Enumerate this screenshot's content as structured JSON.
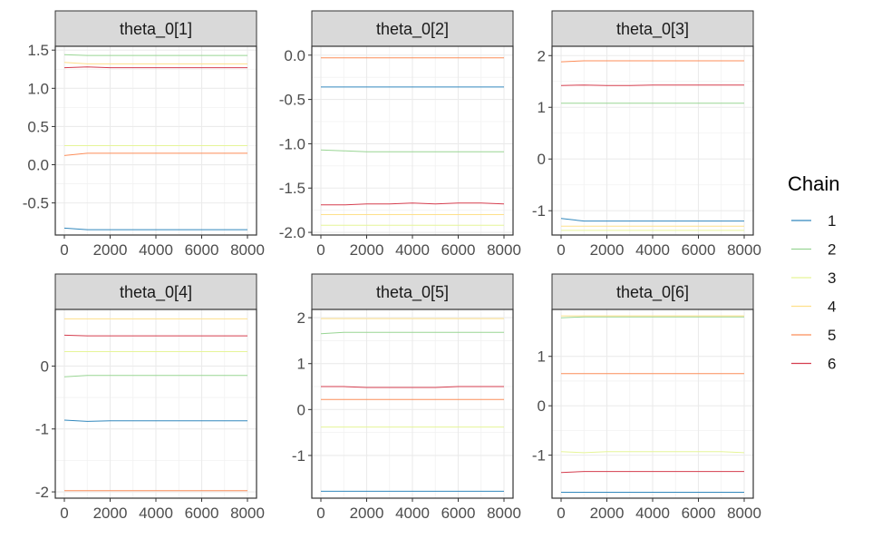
{
  "chart_data": {
    "type": "line",
    "xlim": [
      0,
      8000
    ],
    "xticks": [
      0,
      2000,
      4000,
      6000,
      8000
    ],
    "x": [
      0,
      1000,
      2000,
      3000,
      4000,
      5000,
      6000,
      7000,
      8000
    ],
    "legend": {
      "title": "Chain",
      "position": "right",
      "entries": [
        "1",
        "2",
        "3",
        "4",
        "5",
        "6"
      ]
    },
    "colors": {
      "1": "#3288bd",
      "2": "#99d594",
      "3": "#e6f598",
      "4": "#fee08b",
      "5": "#fc8d59",
      "6": "#d53e4f"
    },
    "panels": [
      {
        "title": "theta_0[1]",
        "ylim": [
          -0.92,
          1.55
        ],
        "yticks": [
          -0.5,
          0.0,
          0.5,
          1.0,
          1.5
        ],
        "yticklabels": [
          "-0.5",
          "0.0",
          "0.5",
          "1.0",
          "1.5"
        ],
        "series": [
          {
            "name": "1",
            "values": [
              -0.83,
              -0.85,
              -0.85,
              -0.85,
              -0.85,
              -0.85,
              -0.85,
              -0.85,
              -0.85
            ]
          },
          {
            "name": "2",
            "values": [
              1.44,
              1.43,
              1.43,
              1.43,
              1.43,
              1.43,
              1.43,
              1.43,
              1.43
            ]
          },
          {
            "name": "3",
            "values": [
              0.25,
              0.25,
              0.25,
              0.25,
              0.25,
              0.25,
              0.25,
              0.25,
              0.25
            ]
          },
          {
            "name": "4",
            "values": [
              1.34,
              1.32,
              1.32,
              1.32,
              1.32,
              1.32,
              1.32,
              1.32,
              1.32
            ]
          },
          {
            "name": "5",
            "values": [
              0.12,
              0.15,
              0.15,
              0.15,
              0.15,
              0.15,
              0.15,
              0.15,
              0.15
            ]
          },
          {
            "name": "6",
            "values": [
              1.27,
              1.28,
              1.27,
              1.27,
              1.27,
              1.27,
              1.27,
              1.27,
              1.27
            ]
          }
        ]
      },
      {
        "title": "theta_0[2]",
        "ylim": [
          -2.03,
          0.1
        ],
        "yticks": [
          -2.0,
          -1.5,
          -1.0,
          -0.5,
          0.0
        ],
        "yticklabels": [
          "-2.0",
          "-1.5",
          "-1.0",
          "-0.5",
          "0.0"
        ],
        "series": [
          {
            "name": "1",
            "values": [
              -0.36,
              -0.36,
              -0.36,
              -0.36,
              -0.36,
              -0.36,
              -0.36,
              -0.36,
              -0.36
            ]
          },
          {
            "name": "2",
            "values": [
              -1.07,
              -1.08,
              -1.09,
              -1.09,
              -1.09,
              -1.09,
              -1.09,
              -1.09,
              -1.09
            ]
          },
          {
            "name": "3",
            "values": [
              -1.92,
              -1.92,
              -1.92,
              -1.92,
              -1.92,
              -1.92,
              -1.92,
              -1.92,
              -1.92
            ]
          },
          {
            "name": "4",
            "values": [
              -1.8,
              -1.8,
              -1.8,
              -1.8,
              -1.8,
              -1.8,
              -1.8,
              -1.8,
              -1.8
            ]
          },
          {
            "name": "5",
            "values": [
              -0.03,
              -0.03,
              -0.03,
              -0.03,
              -0.03,
              -0.03,
              -0.03,
              -0.03,
              -0.03
            ]
          },
          {
            "name": "6",
            "values": [
              -1.69,
              -1.69,
              -1.68,
              -1.68,
              -1.67,
              -1.68,
              -1.67,
              -1.67,
              -1.68
            ]
          }
        ]
      },
      {
        "title": "theta_0[3]",
        "ylim": [
          -1.47,
          2.18
        ],
        "yticks": [
          -1,
          0,
          1,
          2
        ],
        "yticklabels": [
          "-1",
          "0",
          "1",
          "2"
        ],
        "series": [
          {
            "name": "1",
            "values": [
              -1.15,
              -1.2,
              -1.2,
              -1.2,
              -1.2,
              -1.2,
              -1.2,
              -1.2,
              -1.2
            ]
          },
          {
            "name": "2",
            "values": [
              1.08,
              1.08,
              1.08,
              1.08,
              1.08,
              1.08,
              1.08,
              1.08,
              1.08
            ]
          },
          {
            "name": "3",
            "values": [
              -1.38,
              -1.38,
              -1.38,
              -1.38,
              -1.38,
              -1.38,
              -1.38,
              -1.38,
              -1.38
            ]
          },
          {
            "name": "4",
            "values": [
              -1.3,
              -1.3,
              -1.3,
              -1.3,
              -1.3,
              -1.3,
              -1.3,
              -1.3,
              -1.3
            ]
          },
          {
            "name": "5",
            "values": [
              1.88,
              1.9,
              1.9,
              1.9,
              1.9,
              1.9,
              1.9,
              1.9,
              1.9
            ]
          },
          {
            "name": "6",
            "values": [
              1.42,
              1.43,
              1.42,
              1.42,
              1.43,
              1.43,
              1.43,
              1.43,
              1.43
            ]
          }
        ]
      },
      {
        "title": "theta_0[4]",
        "ylim": [
          -2.1,
          0.9
        ],
        "yticks": [
          -2,
          -1,
          0
        ],
        "yticklabels": [
          "-2",
          "-1",
          "0"
        ],
        "series": [
          {
            "name": "1",
            "values": [
              -0.86,
              -0.88,
              -0.87,
              -0.87,
              -0.87,
              -0.87,
              -0.87,
              -0.87,
              -0.87
            ]
          },
          {
            "name": "2",
            "values": [
              -0.17,
              -0.15,
              -0.15,
              -0.15,
              -0.15,
              -0.15,
              -0.15,
              -0.15,
              -0.15
            ]
          },
          {
            "name": "3",
            "values": [
              0.23,
              0.23,
              0.23,
              0.23,
              0.23,
              0.23,
              0.23,
              0.23,
              0.23
            ]
          },
          {
            "name": "4",
            "values": [
              0.75,
              0.75,
              0.75,
              0.75,
              0.75,
              0.75,
              0.75,
              0.75,
              0.75
            ]
          },
          {
            "name": "5",
            "values": [
              -1.98,
              -1.98,
              -1.98,
              -1.98,
              -1.98,
              -1.98,
              -1.98,
              -1.98,
              -1.98
            ]
          },
          {
            "name": "6",
            "values": [
              0.49,
              0.48,
              0.48,
              0.48,
              0.48,
              0.48,
              0.48,
              0.48,
              0.48
            ]
          }
        ]
      },
      {
        "title": "theta_0[5]",
        "ylim": [
          -1.93,
          2.18
        ],
        "yticks": [
          -1,
          0,
          1,
          2
        ],
        "yticklabels": [
          "-1",
          "0",
          "1",
          "2"
        ],
        "series": [
          {
            "name": "1",
            "values": [
              -1.78,
              -1.78,
              -1.78,
              -1.78,
              -1.78,
              -1.78,
              -1.78,
              -1.78,
              -1.78
            ]
          },
          {
            "name": "2",
            "values": [
              1.65,
              1.68,
              1.68,
              1.68,
              1.68,
              1.68,
              1.68,
              1.68,
              1.68
            ]
          },
          {
            "name": "3",
            "values": [
              -0.38,
              -0.38,
              -0.38,
              -0.38,
              -0.38,
              -0.38,
              -0.38,
              -0.38,
              -0.38
            ]
          },
          {
            "name": "4",
            "values": [
              1.98,
              1.98,
              1.98,
              1.98,
              1.98,
              1.98,
              1.98,
              1.98,
              1.98
            ]
          },
          {
            "name": "5",
            "values": [
              0.22,
              0.22,
              0.22,
              0.22,
              0.22,
              0.22,
              0.22,
              0.22,
              0.22
            ]
          },
          {
            "name": "6",
            "values": [
              0.5,
              0.5,
              0.48,
              0.48,
              0.48,
              0.48,
              0.5,
              0.5,
              0.5
            ]
          }
        ]
      },
      {
        "title": "theta_0[6]",
        "ylim": [
          -1.87,
          1.95
        ],
        "yticks": [
          -1,
          0,
          1
        ],
        "yticklabels": [
          "-1",
          "0",
          "1"
        ],
        "series": [
          {
            "name": "1",
            "values": [
              -1.75,
              -1.75,
              -1.75,
              -1.75,
              -1.75,
              -1.75,
              -1.75,
              -1.75,
              -1.75
            ]
          },
          {
            "name": "2",
            "values": [
              1.78,
              1.8,
              1.8,
              1.8,
              1.8,
              1.8,
              1.8,
              1.8,
              1.8
            ]
          },
          {
            "name": "3",
            "values": [
              -0.93,
              -0.95,
              -0.93,
              -0.93,
              -0.93,
              -0.93,
              -0.93,
              -0.93,
              -0.95
            ]
          },
          {
            "name": "4",
            "values": [
              1.82,
              1.82,
              1.82,
              1.82,
              1.82,
              1.82,
              1.82,
              1.82,
              1.82
            ]
          },
          {
            "name": "5",
            "values": [
              0.65,
              0.65,
              0.65,
              0.65,
              0.65,
              0.65,
              0.65,
              0.65,
              0.65
            ]
          },
          {
            "name": "6",
            "values": [
              -1.35,
              -1.33,
              -1.33,
              -1.33,
              -1.33,
              -1.33,
              -1.33,
              -1.33,
              -1.33
            ]
          }
        ]
      }
    ]
  }
}
